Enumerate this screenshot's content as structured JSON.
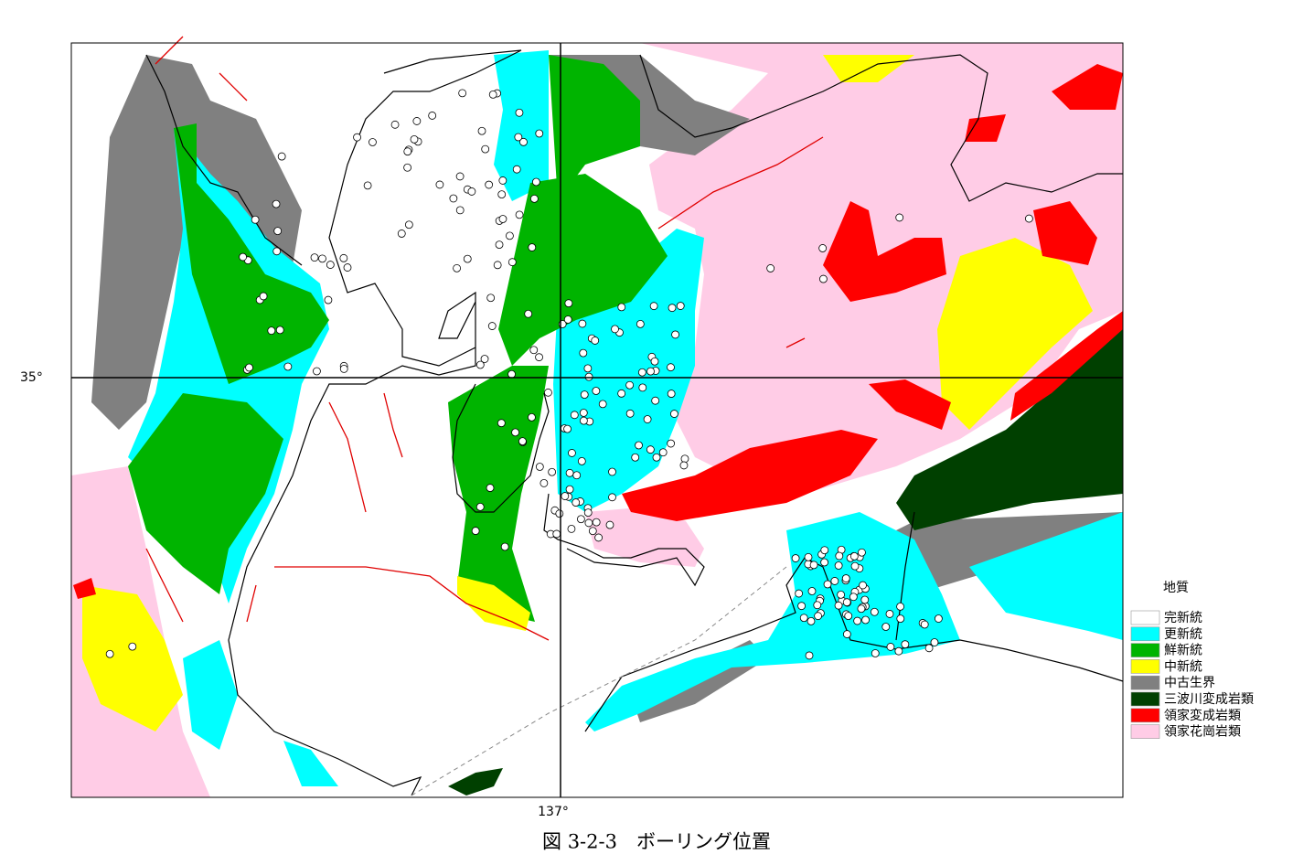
{
  "map": {
    "latitude_label": "35°",
    "longitude_label": "137°",
    "legend": {
      "title": "地質",
      "items": [
        {
          "label": "完新統",
          "color": "#ffffff"
        },
        {
          "label": "更新統",
          "color": "#00ffff"
        },
        {
          "label": "鮮新統",
          "color": "#00b400"
        },
        {
          "label": "中新統",
          "color": "#ffff00"
        },
        {
          "label": "中古生界",
          "color": "#808080"
        },
        {
          "label": "三波川変成岩類",
          "color": "#004000"
        },
        {
          "label": "領家変成岩類",
          "color": "#ff0000"
        },
        {
          "label": "領家花崗岩類",
          "color": "#ffcce6"
        }
      ]
    },
    "caption": "図 3-2-3　ボーリング位置"
  }
}
